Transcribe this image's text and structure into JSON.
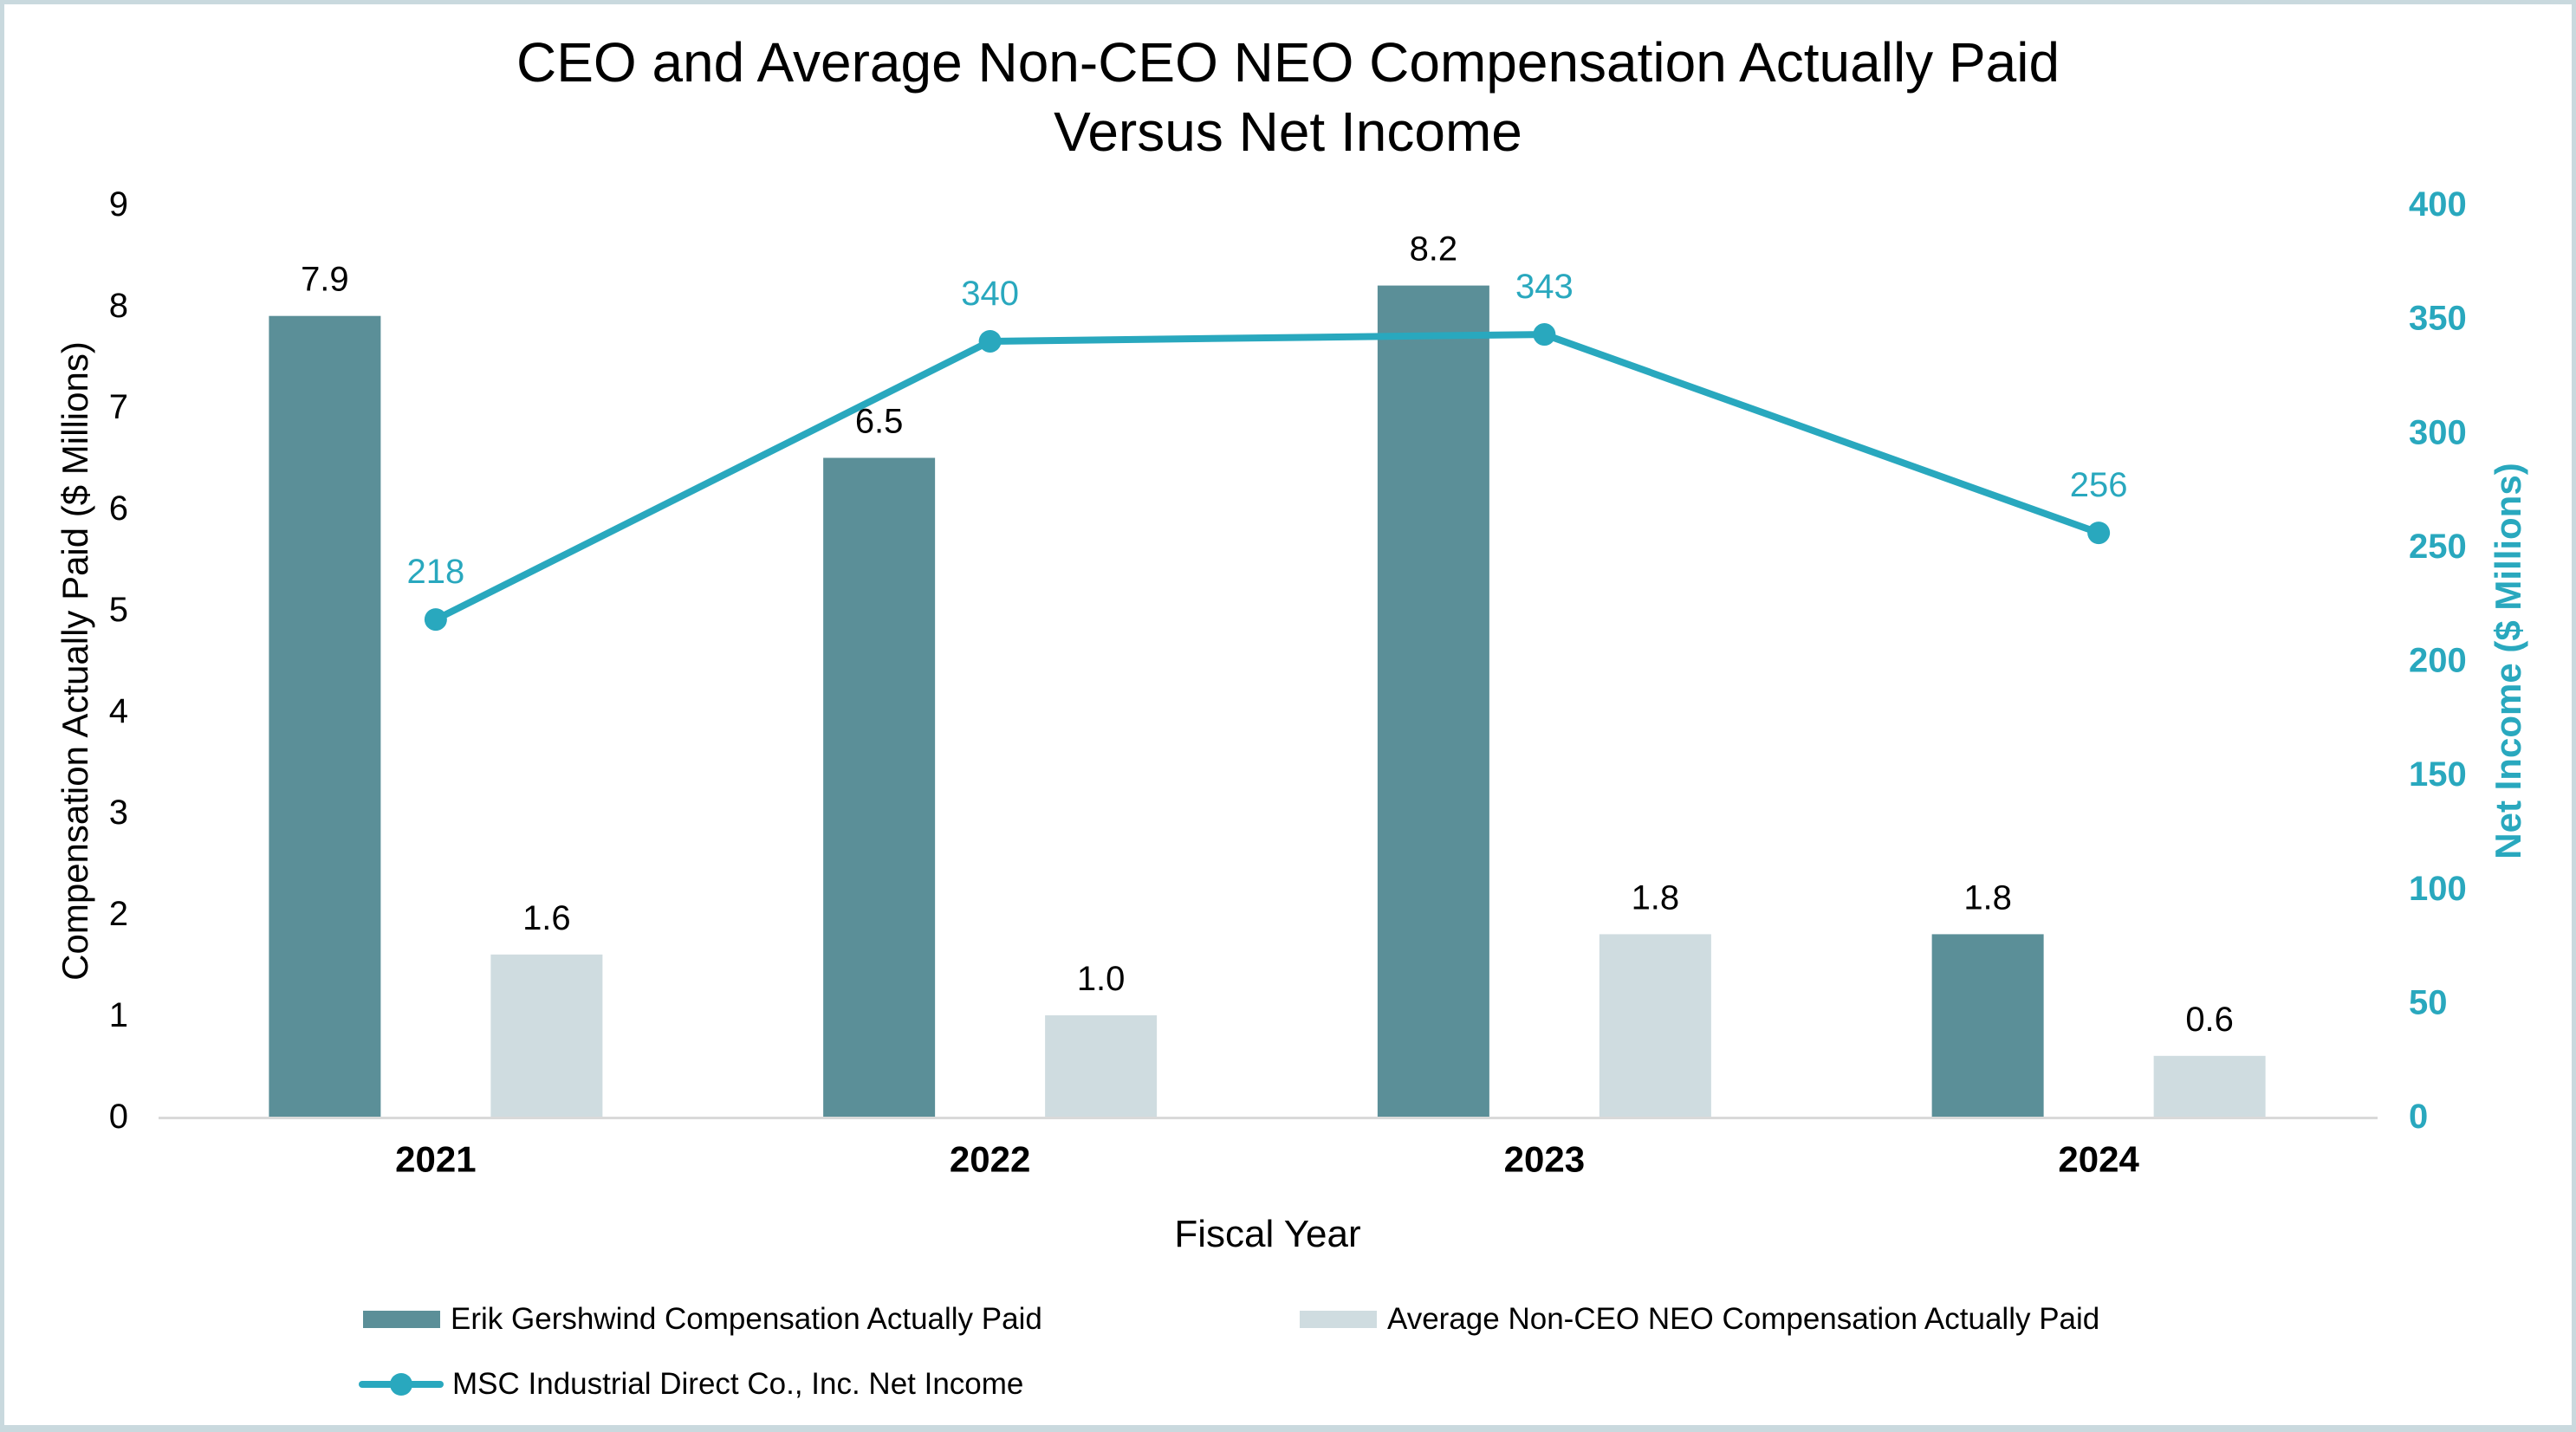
{
  "title": {
    "line1": "CEO and Average Non-CEO NEO Compensation Actually Paid",
    "line2": "Versus Net Income"
  },
  "chart_data": {
    "type": "bar",
    "subtype": "combo-clustered-bar-with-line-dual-axis",
    "categories": [
      "2021",
      "2022",
      "2023",
      "2024"
    ],
    "series": [
      {
        "name": "Erik Gershwind Compensation Actually Paid",
        "type": "bar",
        "axis": "left",
        "color": "#5b8f98",
        "values": [
          7.9,
          6.5,
          8.2,
          1.8
        ],
        "labels": [
          "7.9",
          "6.5",
          "8.2",
          "1.8"
        ]
      },
      {
        "name": "Average Non-CEO NEO Compensation Actually Paid",
        "type": "bar",
        "axis": "left",
        "color": "#cfdce0",
        "values": [
          1.6,
          1.0,
          1.8,
          0.6
        ],
        "labels": [
          "1.6",
          "1.0",
          "1.8",
          "0.6"
        ]
      },
      {
        "name": "MSC Industrial Direct Co., Inc. Net Income",
        "type": "line",
        "axis": "right",
        "color": "#29a8be",
        "values": [
          218,
          340,
          343,
          256
        ],
        "labels": [
          "218",
          "340",
          "343",
          "256"
        ]
      }
    ],
    "left_axis": {
      "title": "Compensation Actually Paid ($ Millions)",
      "min": 0,
      "max": 9,
      "step": 1,
      "tick_labels": [
        "0",
        "1",
        "2",
        "3",
        "4",
        "5",
        "6",
        "7",
        "8",
        "9"
      ]
    },
    "right_axis": {
      "title": "Net Income ($ Millions)",
      "min": 0,
      "max": 400,
      "step": 50,
      "tick_labels": [
        "0",
        "50",
        "100",
        "150",
        "200",
        "250",
        "300",
        "350",
        "400"
      ]
    },
    "x_axis": {
      "title": "Fiscal Year"
    },
    "grid": false,
    "legend_position": "bottom-left"
  },
  "colors": {
    "ceo_bar": "#5b8f98",
    "neo_bar": "#cfdce0",
    "net_income_line": "#29a8be",
    "axis_line": "#d9d9d9",
    "text": "#000000",
    "border": "#c9d9de"
  }
}
